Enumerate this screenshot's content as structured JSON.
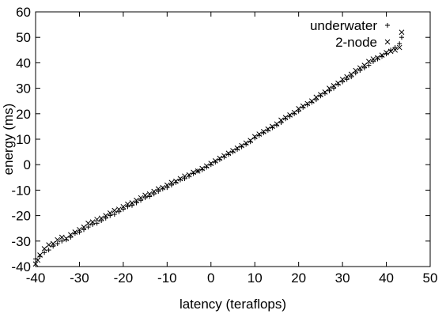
{
  "chart_data": {
    "type": "scatter",
    "xlabel": "latency (teraflops)",
    "ylabel": "energy (ms)",
    "xlim": [
      -40,
      50
    ],
    "ylim": [
      -40,
      60
    ],
    "xticks": [
      -40,
      -30,
      -20,
      -10,
      0,
      10,
      20,
      30,
      40,
      50
    ],
    "yticks": [
      -40,
      -30,
      -20,
      -10,
      0,
      10,
      20,
      30,
      40,
      50,
      60
    ],
    "grid": false,
    "legend": "top-right",
    "series": [
      {
        "name": "underwater",
        "marker": "plus",
        "color": "#000000",
        "points": [
          [
            -40,
            -37
          ],
          [
            -39,
            -36
          ],
          [
            -38,
            -34.5
          ],
          [
            -37,
            -33.5
          ],
          [
            -36,
            -32
          ],
          [
            -35,
            -31
          ],
          [
            -34,
            -30
          ],
          [
            -33,
            -29.5
          ],
          [
            -32,
            -28.5
          ],
          [
            -31,
            -27
          ],
          [
            -30,
            -26.5
          ],
          [
            -29,
            -25.5
          ],
          [
            -28,
            -24.5
          ],
          [
            -27,
            -23.5
          ],
          [
            -26,
            -23
          ],
          [
            -25,
            -22
          ],
          [
            -24,
            -21
          ],
          [
            -23,
            -20
          ],
          [
            -22,
            -19.5
          ],
          [
            -21,
            -18.5
          ],
          [
            -20,
            -17.5
          ],
          [
            -19,
            -16.5
          ],
          [
            -18,
            -16
          ],
          [
            -17,
            -15
          ],
          [
            -16,
            -14
          ],
          [
            -15,
            -13
          ],
          [
            -14,
            -12.5
          ],
          [
            -13,
            -11.5
          ],
          [
            -12,
            -10.5
          ],
          [
            -11,
            -9.5
          ],
          [
            -10,
            -9
          ],
          [
            -9,
            -8
          ],
          [
            -8,
            -7
          ],
          [
            -7,
            -6
          ],
          [
            -6,
            -5.5
          ],
          [
            -5,
            -4.5
          ],
          [
            -4,
            -3.5
          ],
          [
            -3,
            -2.5
          ],
          [
            -2,
            -2
          ],
          [
            -1,
            -1
          ],
          [
            0,
            0
          ],
          [
            1,
            1
          ],
          [
            2,
            2
          ],
          [
            3,
            3
          ],
          [
            4,
            4
          ],
          [
            5,
            5
          ],
          [
            6,
            6
          ],
          [
            7,
            7
          ],
          [
            8,
            8
          ],
          [
            9,
            9
          ],
          [
            10,
            10.5
          ],
          [
            11,
            11.5
          ],
          [
            12,
            12.5
          ],
          [
            13,
            13.5
          ],
          [
            14,
            14.5
          ],
          [
            15,
            15.5
          ],
          [
            16,
            16.5
          ],
          [
            17,
            18
          ],
          [
            18,
            19
          ],
          [
            19,
            20
          ],
          [
            20,
            21
          ],
          [
            21,
            22.5
          ],
          [
            22,
            23.5
          ],
          [
            23,
            24.5
          ],
          [
            24,
            25.5
          ],
          [
            25,
            27
          ],
          [
            26,
            28
          ],
          [
            27,
            29
          ],
          [
            28,
            30
          ],
          [
            29,
            31.5
          ],
          [
            30,
            32.5
          ],
          [
            31,
            33.5
          ],
          [
            32,
            34.5
          ],
          [
            33,
            36
          ],
          [
            34,
            37
          ],
          [
            35,
            38
          ],
          [
            36,
            39
          ],
          [
            37,
            40.5
          ],
          [
            38,
            41.5
          ],
          [
            39,
            42.5
          ],
          [
            40,
            43.5
          ],
          [
            41,
            45
          ],
          [
            42,
            46
          ],
          [
            43,
            47.5
          ],
          [
            43.5,
            50
          ]
        ]
      },
      {
        "name": "2-node",
        "marker": "cross",
        "color": "#000000",
        "points": [
          [
            -40,
            -39
          ],
          [
            -39.5,
            -37.5
          ],
          [
            -39,
            -35.5
          ],
          [
            -38,
            -33
          ],
          [
            -37,
            -31.5
          ],
          [
            -36,
            -31
          ],
          [
            -35,
            -29.5
          ],
          [
            -34,
            -28.5
          ],
          [
            -33,
            -29
          ],
          [
            -32,
            -27.5
          ],
          [
            -31,
            -26.5
          ],
          [
            -30,
            -25.5
          ],
          [
            -29,
            -24.5
          ],
          [
            -28,
            -23
          ],
          [
            -27,
            -22.5
          ],
          [
            -26,
            -21.5
          ],
          [
            -25,
            -21
          ],
          [
            -24,
            -20
          ],
          [
            -23,
            -19
          ],
          [
            -22,
            -18
          ],
          [
            -21,
            -17.5
          ],
          [
            -20,
            -16.5
          ],
          [
            -19,
            -15.5
          ],
          [
            -18,
            -15
          ],
          [
            -17,
            -14
          ],
          [
            -16,
            -13
          ],
          [
            -15,
            -12
          ],
          [
            -14,
            -11.5
          ],
          [
            -13,
            -10.5
          ],
          [
            -12,
            -9.5
          ],
          [
            -11,
            -9
          ],
          [
            -10,
            -8
          ],
          [
            -9,
            -7
          ],
          [
            -8,
            -6.5
          ],
          [
            -7,
            -5.5
          ],
          [
            -6,
            -4.5
          ],
          [
            -5,
            -4
          ],
          [
            -4,
            -3
          ],
          [
            -3,
            -2.5
          ],
          [
            -2,
            -1.5
          ],
          [
            -1,
            -0.5
          ],
          [
            0,
            0.5
          ],
          [
            1,
            1.5
          ],
          [
            2,
            2.5
          ],
          [
            3,
            3.5
          ],
          [
            4,
            4.5
          ],
          [
            5,
            5.5
          ],
          [
            6,
            6.5
          ],
          [
            7,
            7.5
          ],
          [
            8,
            8.5
          ],
          [
            9,
            9.5
          ],
          [
            10,
            11
          ],
          [
            11,
            12
          ],
          [
            12,
            13
          ],
          [
            13,
            14
          ],
          [
            14,
            15
          ],
          [
            15,
            16
          ],
          [
            16,
            17.5
          ],
          [
            17,
            18.5
          ],
          [
            18,
            19.5
          ],
          [
            19,
            20.5
          ],
          [
            20,
            22
          ],
          [
            21,
            23
          ],
          [
            22,
            24
          ],
          [
            23,
            25
          ],
          [
            24,
            26.5
          ],
          [
            25,
            27.5
          ],
          [
            26,
            28.5
          ],
          [
            27,
            30
          ],
          [
            28,
            31
          ],
          [
            29,
            32
          ],
          [
            30,
            33.5
          ],
          [
            31,
            34.5
          ],
          [
            32,
            35.5
          ],
          [
            33,
            37
          ],
          [
            34,
            38
          ],
          [
            35,
            39
          ],
          [
            36,
            40.5
          ],
          [
            37,
            41.5
          ],
          [
            38,
            42
          ],
          [
            39,
            43
          ],
          [
            40,
            44
          ],
          [
            41,
            44.5
          ],
          [
            42,
            45
          ],
          [
            43,
            46
          ],
          [
            43.5,
            52
          ]
        ]
      }
    ]
  }
}
